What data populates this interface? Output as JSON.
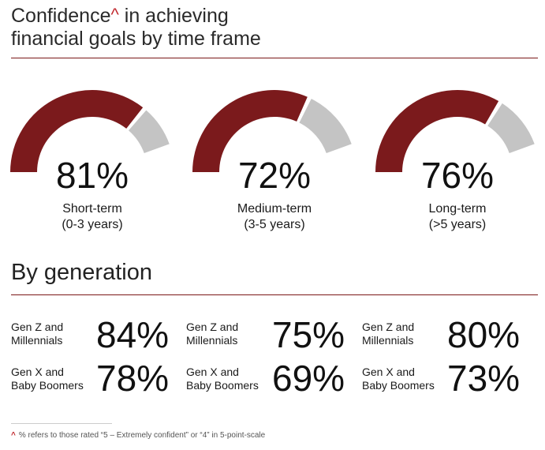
{
  "title_prefix": "Confidence",
  "title_caret": "^",
  "title_line1_rest": " in achieving",
  "title_line2": "financial goals by time frame",
  "colors": {
    "filled": "#7b1a1c",
    "empty": "#c4c4c4",
    "rule": "#7a1818",
    "caret": "#c0272d"
  },
  "chart_data": [
    {
      "type": "gauge",
      "title": "Confidence^ in achieving financial goals by time frame",
      "unit": "%",
      "items": [
        {
          "value": 81,
          "value_label": "81%",
          "label_line1": "Short-term",
          "label_line2": "(0-3 years)"
        },
        {
          "value": 72,
          "value_label": "72%",
          "label_line1": "Medium-term",
          "label_line2": "(3-5 years)"
        },
        {
          "value": 76,
          "value_label": "76%",
          "label_line1": "Long-term",
          "label_line2": "(>5 years)"
        }
      ]
    },
    {
      "type": "table",
      "title": "By generation",
      "columns": [
        "Short-term (0-3 years)",
        "Medium-term (3-5 years)",
        "Long-term (>5 years)"
      ],
      "rows": [
        {
          "label_line1": "Gen Z and",
          "label_line2": "Millennials",
          "values": [
            84,
            75,
            80
          ],
          "value_labels": [
            "84%",
            "75%",
            "80%"
          ]
        },
        {
          "label_line1": "Gen X and",
          "label_line2": "Baby Boomers",
          "values": [
            78,
            69,
            73
          ],
          "value_labels": [
            "78%",
            "69%",
            "73%"
          ]
        }
      ]
    }
  ],
  "footnote_caret": "^",
  "footnote_text": "% refers to those rated “5 – Extremely confident” or “4” in 5-point-scale"
}
